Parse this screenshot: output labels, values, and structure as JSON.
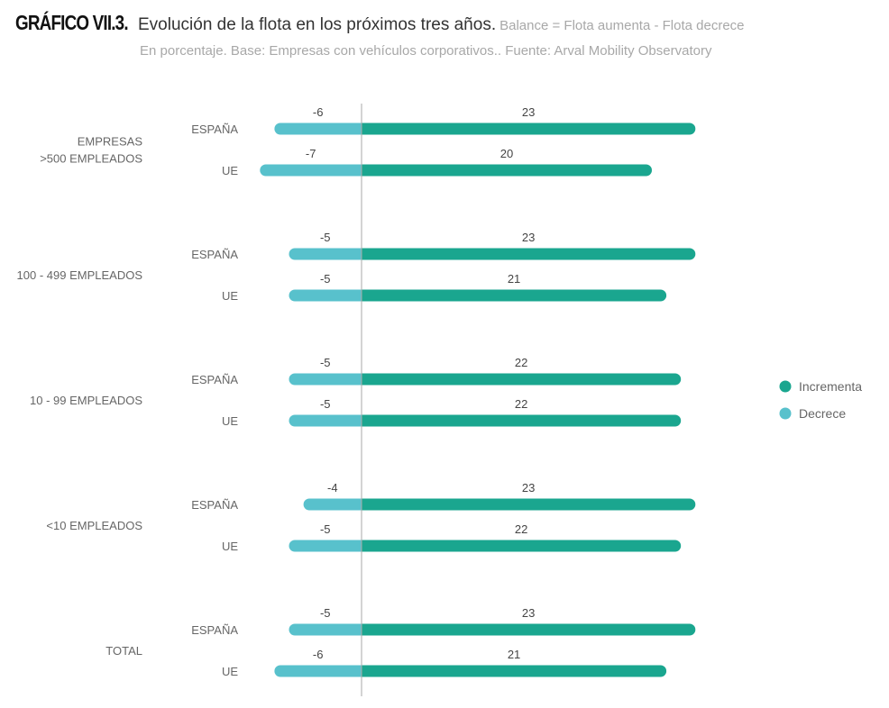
{
  "header": {
    "figure_label": "GRÁFICO VII.3.",
    "title": "Evolución de la flota en los próximos tres años.",
    "subtitle": "Balance = Flota aumenta - Flota decrece",
    "note": "En porcentaje. Base: Empresas con vehículos corporativos.. Fuente: Arval Mobility Observatory"
  },
  "colors": {
    "increase": "#1aa68f",
    "decrease": "#58c1cc",
    "axis": "#aaaaaa",
    "label": "#666666",
    "value": "#444444"
  },
  "chart_data": {
    "type": "bar",
    "orientation": "horizontal",
    "stacked": "diverging",
    "xlim": [
      -7,
      23
    ],
    "legend_placement": "right",
    "series": [
      {
        "name": "Incrementa",
        "color": "#1aa68f"
      },
      {
        "name": "Decrece",
        "color": "#58c1cc"
      }
    ],
    "groups": [
      {
        "label_lines": [
          "EMPRESAS",
          ">500 EMPLEADOS"
        ],
        "rows": [
          {
            "label": "ESPAÑA",
            "decrece": -6,
            "incrementa": 23
          },
          {
            "label": "UE",
            "decrece": -7,
            "incrementa": 20
          }
        ]
      },
      {
        "label_lines": [
          "100 - 499 EMPLEADOS"
        ],
        "rows": [
          {
            "label": "ESPAÑA",
            "decrece": -5,
            "incrementa": 23
          },
          {
            "label": "UE",
            "decrece": -5,
            "incrementa": 21
          }
        ]
      },
      {
        "label_lines": [
          "10  - 99 EMPLEADOS"
        ],
        "rows": [
          {
            "label": "ESPAÑA",
            "decrece": -5,
            "incrementa": 22
          },
          {
            "label": "UE",
            "decrece": -5,
            "incrementa": 22
          }
        ]
      },
      {
        "label_lines": [
          "<10 EMPLEADOS"
        ],
        "rows": [
          {
            "label": "ESPAÑA",
            "decrece": -4,
            "incrementa": 23
          },
          {
            "label": "UE",
            "decrece": -5,
            "incrementa": 22
          }
        ]
      },
      {
        "label_lines": [
          "TOTAL"
        ],
        "rows": [
          {
            "label": "ESPAÑA",
            "decrece": -5,
            "incrementa": 23
          },
          {
            "label": "UE",
            "decrece": -6,
            "incrementa": 21
          }
        ]
      }
    ]
  }
}
